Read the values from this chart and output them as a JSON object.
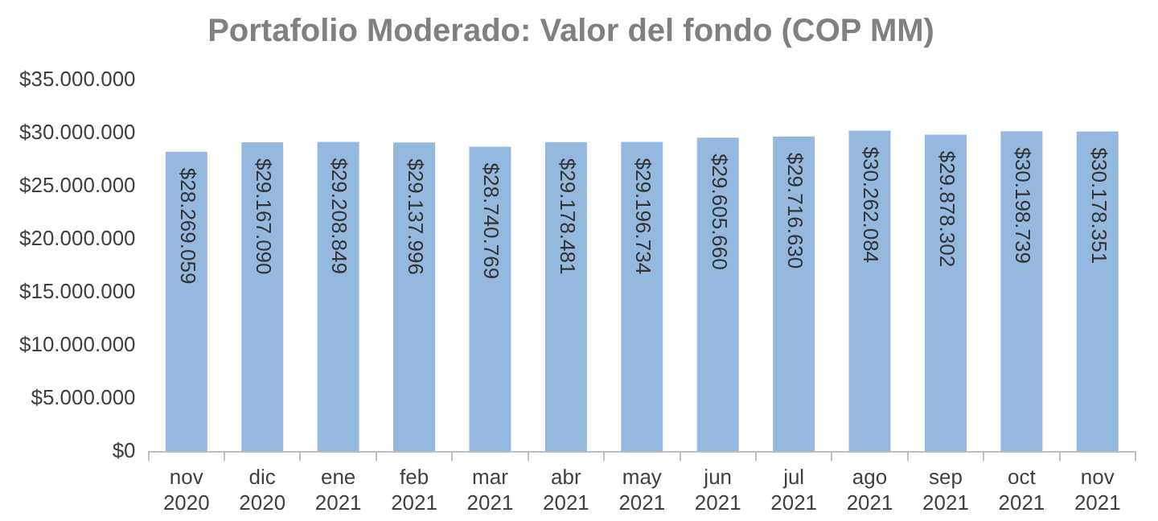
{
  "chart_data": {
    "type": "bar",
    "title": "Portafolio Moderado: Valor del fondo (COP MM)",
    "categories": [
      "nov 2020",
      "dic 2020",
      "ene 2021",
      "feb 2021",
      "mar 2021",
      "abr 2021",
      "may 2021",
      "jun 2021",
      "jul 2021",
      "ago 2021",
      "sep 2021",
      "oct 2021",
      "nov 2021"
    ],
    "values": [
      28269059,
      29167090,
      29208849,
      29137996,
      28740769,
      29178481,
      29196734,
      29605660,
      29716630,
      30262084,
      29878302,
      30198739,
      30178351
    ],
    "value_labels": [
      "$28.269.059",
      "$29.167.090",
      "$29.208.849",
      "$29.137.996",
      "$28.740.769",
      "$29.178.481",
      "$29.196.734",
      "$29.605.660",
      "$29.716.630",
      "$30.262.084",
      "$29.878.302",
      "$30.198.739",
      "$30.178.351"
    ],
    "color": "#95b8de",
    "ylim": [
      0,
      35000000
    ],
    "yticks": [
      {
        "value": 0,
        "label": "$0"
      },
      {
        "value": 5000000,
        "label": "$5.000.000"
      },
      {
        "value": 10000000,
        "label": "$10.000.000"
      },
      {
        "value": 15000000,
        "label": "$15.000.000"
      },
      {
        "value": 20000000,
        "label": "$20.000.000"
      },
      {
        "value": 25000000,
        "label": "$25.000.000"
      },
      {
        "value": 30000000,
        "label": "$30.000.000"
      },
      {
        "value": 35000000,
        "label": "$35.000.000"
      }
    ],
    "grid": false,
    "legend": false
  }
}
